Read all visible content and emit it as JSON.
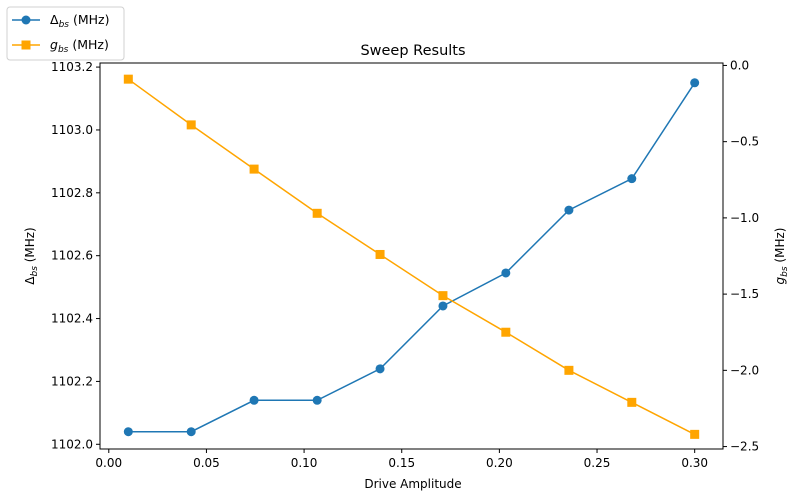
{
  "chart_data": {
    "type": "line",
    "title": "Sweep Results",
    "xlabel": "Drive Amplitude",
    "x": [
      0.01,
      0.0422,
      0.0744,
      0.1067,
      0.1389,
      0.1711,
      0.2033,
      0.2356,
      0.2678,
      0.3
    ],
    "xlim": [
      -0.0045,
      0.3145
    ],
    "xticks": [
      "0.00",
      "0.05",
      "0.10",
      "0.15",
      "0.20",
      "0.25",
      "0.30"
    ],
    "xtick_values": [
      0.0,
      0.05,
      0.1,
      0.15,
      0.2,
      0.25,
      0.3
    ],
    "y_left": {
      "label_main": "Δ",
      "label_sub": "bs",
      "label_unit": " (MHz)",
      "lim": [
        1101.985,
        1103.213
      ],
      "ticks": [
        "1102.0",
        "1102.2",
        "1102.4",
        "1102.6",
        "1102.8",
        "1103.0",
        "1103.2"
      ],
      "tick_values": [
        1102.0,
        1102.2,
        1102.4,
        1102.6,
        1102.8,
        1103.0,
        1103.2
      ]
    },
    "y_right": {
      "label_main": "g",
      "label_sub": "bs",
      "label_unit": " (MHz)",
      "lim": [
        -2.516,
        0.016
      ],
      "ticks": [
        "0.0",
        "−0.5",
        "−1.0",
        "−1.5",
        "−2.0",
        "−2.5"
      ],
      "tick_values": [
        0.0,
        -0.5,
        -1.0,
        -1.5,
        -2.0,
        -2.5
      ]
    },
    "series": [
      {
        "name_main": "Δ",
        "name_sub": "bs",
        "name_unit": " (MHz)",
        "axis": "left",
        "marker": "circle",
        "color": "#1f77b4",
        "values": [
          1102.04,
          1102.04,
          1102.14,
          1102.14,
          1102.24,
          1102.44,
          1102.545,
          1102.745,
          1102.845,
          1103.15
        ]
      },
      {
        "name_main": "g",
        "name_sub": "bs",
        "name_unit": " (MHz)",
        "axis": "right",
        "marker": "square",
        "color": "#ffa500",
        "values": [
          -0.09,
          -0.39,
          -0.68,
          -0.97,
          -1.24,
          -1.51,
          -1.75,
          -2.0,
          -2.21,
          -2.42
        ]
      }
    ],
    "legend_position": "upper-left-outside",
    "grid": false
  }
}
